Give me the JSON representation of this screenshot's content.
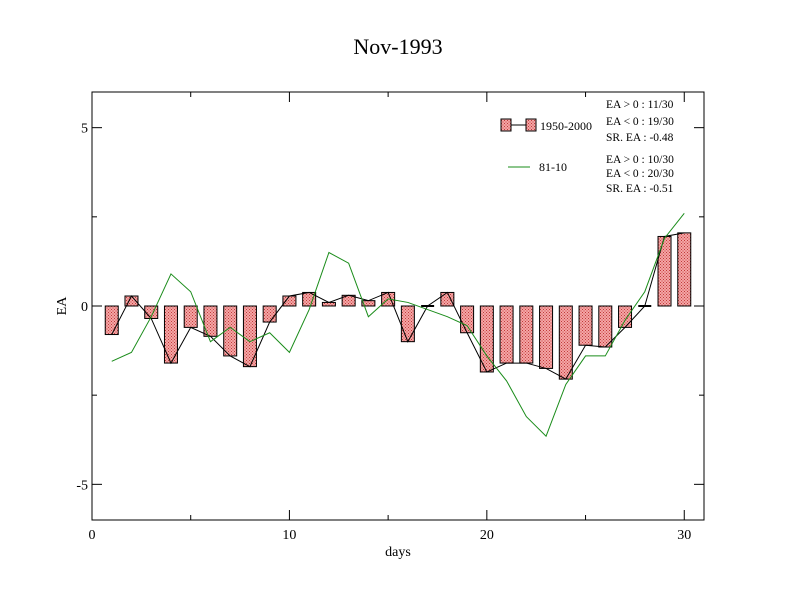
{
  "chart_data": {
    "type": "bar",
    "title": "Nov-1993",
    "xlabel": "days",
    "ylabel": "EA",
    "xlim": [
      0,
      31
    ],
    "ylim": [
      -6,
      6
    ],
    "x_ticks": [
      0,
      10,
      20,
      30
    ],
    "y_ticks": [
      -5,
      0,
      5
    ],
    "x_tick_labels": [
      "0",
      "10",
      "20",
      "30"
    ],
    "y_tick_labels": [
      "-5",
      "0",
      "5"
    ],
    "grid": false,
    "legend_position": "top-right",
    "series": [
      {
        "name": "1950-2000",
        "type": "bar",
        "color": "#f4a0a0",
        "x": [
          1,
          2,
          3,
          4,
          5,
          6,
          7,
          8,
          9,
          10,
          11,
          12,
          13,
          14,
          15,
          16,
          17,
          18,
          19,
          20,
          21,
          22,
          23,
          24,
          25,
          26,
          27,
          28,
          29,
          30
        ],
        "values": [
          -0.8,
          0.28,
          -0.35,
          -1.6,
          -0.6,
          -0.85,
          -1.4,
          -1.7,
          -0.45,
          0.28,
          0.38,
          0.1,
          0.3,
          0.15,
          0.38,
          -1.0,
          0.0,
          0.38,
          -0.75,
          -1.85,
          -1.6,
          -1.6,
          -1.75,
          -2.05,
          -1.1,
          -1.15,
          -0.6,
          0.0,
          1.95,
          2.05
        ],
        "stats": [
          "EA > 0 : 11/30",
          "EA < 0 : 19/30",
          "SR. EA : -0.48"
        ]
      },
      {
        "name": "81-10",
        "type": "line",
        "color": "#1a8c1a",
        "x": [
          1,
          2,
          3,
          4,
          5,
          6,
          7,
          8,
          9,
          10,
          11,
          12,
          13,
          14,
          15,
          16,
          17,
          18,
          19,
          20,
          21,
          22,
          23,
          24,
          25,
          26,
          27,
          28,
          29,
          30
        ],
        "values": [
          -1.55,
          -1.3,
          -0.3,
          0.9,
          0.4,
          -1.0,
          -0.6,
          -1.0,
          -0.75,
          -1.3,
          -0.1,
          1.5,
          1.2,
          -0.3,
          0.2,
          0.1,
          -0.1,
          -0.3,
          -0.55,
          -1.4,
          -2.1,
          -3.1,
          -3.65,
          -2.2,
          -1.4,
          -1.4,
          -0.4,
          0.4,
          1.9,
          2.6
        ],
        "stats": [
          "EA > 0 : 10/30",
          "EA < 0 : 20/30",
          "SR. EA : -0.51"
        ]
      }
    ]
  }
}
